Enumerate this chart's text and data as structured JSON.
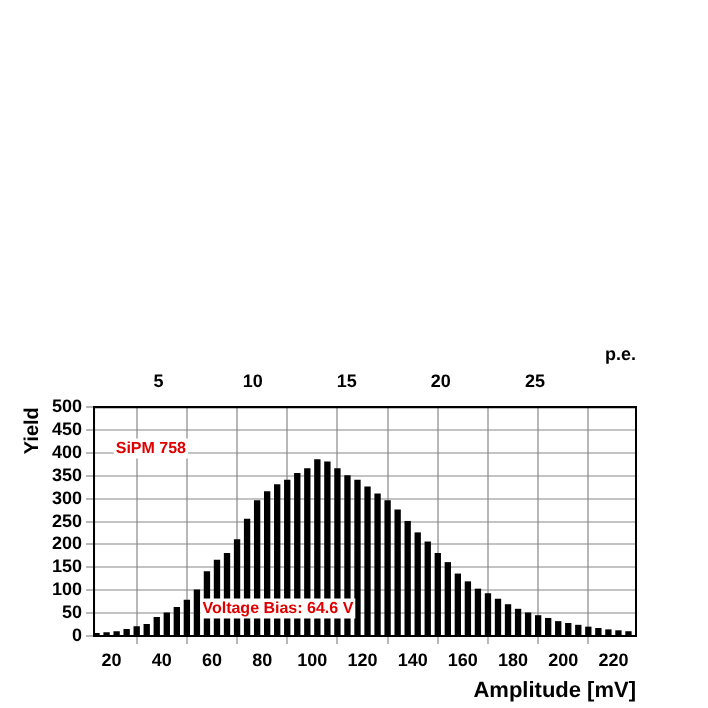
{
  "chart_data": {
    "type": "histogram",
    "xlabel": "Amplitude [mV]",
    "ylabel": "Yield",
    "x2label": "p.e.",
    "bins": [
      13,
      17,
      21,
      25,
      29,
      33,
      37,
      41,
      45,
      49,
      53,
      57,
      61,
      65,
      69,
      73,
      77,
      81,
      85,
      89,
      93,
      97,
      101,
      105,
      109,
      113,
      117,
      121,
      125,
      129,
      133,
      137,
      141,
      145,
      149,
      153,
      157,
      161,
      165,
      169,
      173,
      177,
      181,
      185,
      189,
      193,
      197,
      201,
      205,
      209,
      213,
      217,
      221,
      225,
      229
    ],
    "values": [
      5,
      7,
      9,
      14,
      20,
      25,
      40,
      50,
      62,
      78,
      100,
      140,
      165,
      180,
      210,
      255,
      295,
      315,
      330,
      340,
      355,
      365,
      385,
      380,
      365,
      350,
      340,
      325,
      310,
      295,
      275,
      250,
      225,
      205,
      180,
      160,
      135,
      118,
      102,
      92,
      80,
      68,
      58,
      50,
      44,
      38,
      31,
      27,
      23,
      19,
      16,
      13,
      11,
      9
    ],
    "color": "#000000",
    "xlim": [
      13,
      229
    ],
    "xticks": [
      20,
      40,
      60,
      80,
      100,
      120,
      140,
      160,
      180,
      200,
      220
    ],
    "ylim": [
      0,
      500
    ],
    "yticks": [
      0,
      50,
      100,
      150,
      200,
      250,
      300,
      350,
      400,
      450,
      500
    ],
    "x2lim": [
      1.57,
      30.37
    ],
    "x2ticks": [
      5,
      10,
      15,
      20,
      25
    ],
    "grid": true,
    "legend": false,
    "annotations": [
      "SiPM 758",
      "Voltage Bias: 64.6 V"
    ]
  }
}
